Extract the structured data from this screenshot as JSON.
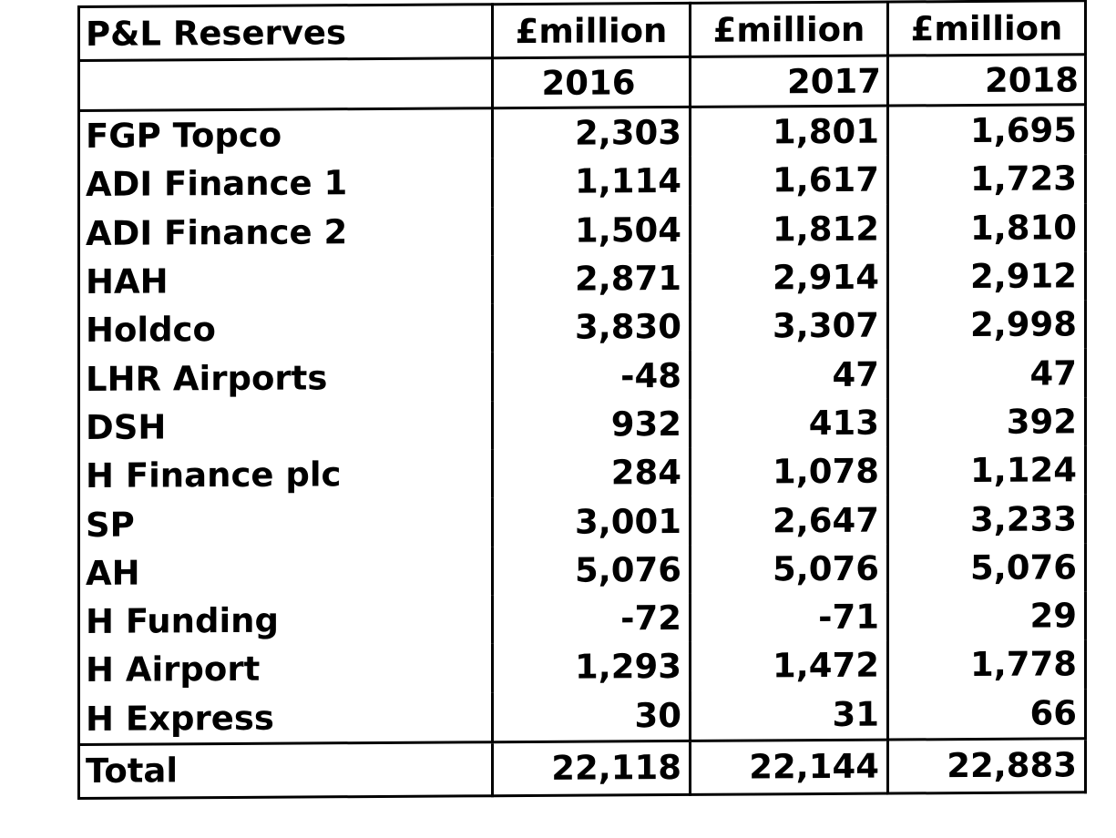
{
  "table": {
    "title": "P&L Reserves",
    "unit_headers": [
      "£million",
      "£million",
      "£million"
    ],
    "years": [
      "2016",
      "2017",
      "2018"
    ],
    "rows": [
      {
        "label": "FGP Topco",
        "values": [
          "2,303",
          "1,801",
          "1,695"
        ]
      },
      {
        "label": "ADI Finance 1",
        "values": [
          "1,114",
          "1,617",
          "1,723"
        ]
      },
      {
        "label": "ADI Finance 2",
        "values": [
          "1,504",
          "1,812",
          "1,810"
        ]
      },
      {
        "label": "HAH",
        "values": [
          "2,871",
          "2,914",
          "2,912"
        ]
      },
      {
        "label": "Holdco",
        "values": [
          "3,830",
          "3,307",
          "2,998"
        ]
      },
      {
        "label": "LHR Airports",
        "values": [
          "-48",
          "47",
          "47"
        ]
      },
      {
        "label": "DSH",
        "values": [
          "932",
          "413",
          "392"
        ]
      },
      {
        "label": "H Finance plc",
        "values": [
          "284",
          "1,078",
          "1,124"
        ]
      },
      {
        "label": "SP",
        "values": [
          "3,001",
          "2,647",
          "3,233"
        ]
      },
      {
        "label": "AH",
        "values": [
          "5,076",
          "5,076",
          "5,076"
        ]
      },
      {
        "label": "H Funding",
        "values": [
          "-72",
          "-71",
          "29"
        ]
      },
      {
        "label": "H Airport",
        "values": [
          "1,293",
          "1,472",
          "1,778"
        ]
      },
      {
        "label": "H Express",
        "values": [
          "30",
          "31",
          "66"
        ]
      }
    ],
    "total": {
      "label": "Total",
      "values": [
        "22,118",
        "22,144",
        "22,883"
      ]
    }
  }
}
